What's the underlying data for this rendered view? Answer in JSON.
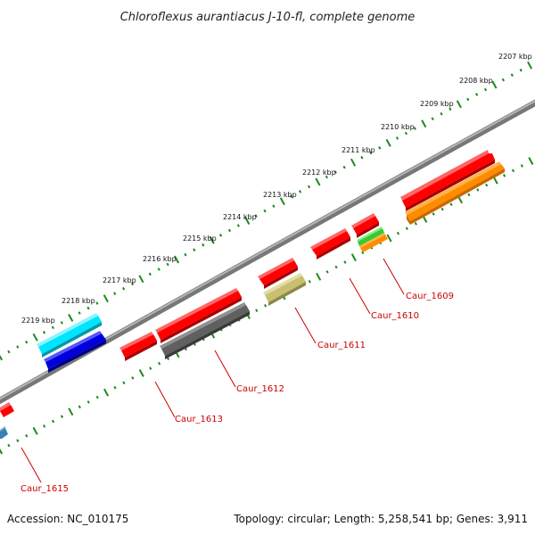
{
  "title": "Chloroflexus aurantiacus J-10-fl, complete genome",
  "accession": "Accession: NC_010175",
  "summary": "Topology: circular; Length: 5,258,541 bp; Genes: 3,911",
  "scale_ticks": [
    "2207 kbp",
    "2208 kbp",
    "2209 kbp",
    "2210 kbp",
    "2211 kbp",
    "2212 kbp",
    "2213 kbp",
    "2214 kbp",
    "2215 kbp",
    "2216 kbp",
    "2217 kbp",
    "2218 kbp",
    "2219 kbp"
  ],
  "gene_labels": [
    "Caur_1609",
    "Caur_1610",
    "Caur_1611",
    "Caur_1612",
    "Caur_1613",
    "Caur_1615"
  ],
  "colors": {
    "cds_red": "#ff0000",
    "orange": "#ff8c00",
    "green": "#33cc33",
    "olive": "#c8c070",
    "dark_gray": "#606060",
    "cyan": "#00e5ff",
    "blue": "#0000dd",
    "steel_blue": "#3b7fb8",
    "backbone": "#8a8a8a",
    "tick_green": "#1a8a1a",
    "label_red": "#cc0000"
  }
}
